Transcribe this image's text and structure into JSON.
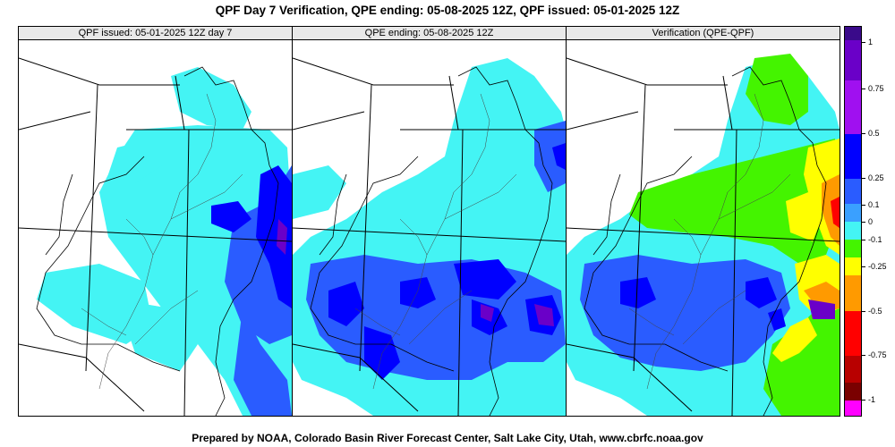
{
  "title": "QPF Day 7 Verification, QPE ending: 05-08-2025 12Z, QPF issued: 05-01-2025 12Z",
  "panels": [
    {
      "header": "QPF issued: 05-01-2025 12Z day 7"
    },
    {
      "header": "QPE ending: 05-08-2025 12Z"
    },
    {
      "header": "Verification (QPE-QPF)"
    }
  ],
  "legend": {
    "labels": [
      "1",
      "0.75",
      "0.5",
      "0.25",
      "0.1",
      "0",
      "-0.1",
      "-0.25",
      "-0.5",
      "-0.75",
      "-1"
    ],
    "colors": [
      "#3a0a8a",
      "#6a00c8",
      "#a010f0",
      "#0000ff",
      "#2a5cff",
      "#3aa0ff",
      "#44f4f4",
      "#44f400",
      "#ffff00",
      "#ff9a00",
      "#ff0000",
      "#b80000",
      "#7a0000",
      "#ff00ff"
    ]
  },
  "footer": "Prepared by NOAA, Colorado Basin River Forecast Center, Salt Lake City, Utah, www.cbrfc.noaa.gov"
}
